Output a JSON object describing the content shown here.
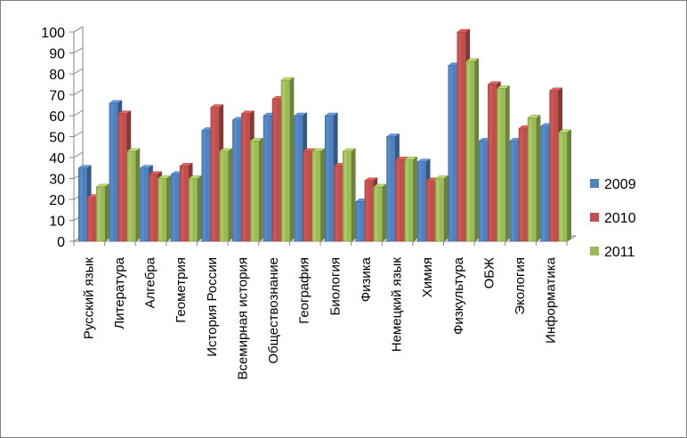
{
  "chart_data": {
    "type": "bar",
    "subtype": "3d-clustered-column",
    "categories": [
      "Русский язык",
      "Литература",
      "Алгебра",
      "Геометрия",
      "История России",
      "Всемирная история",
      "Обществознание",
      "География",
      "Биология",
      "Физика",
      "Немецкий язык",
      "Химия",
      "Физкультура",
      "ОБЖ",
      "Экология",
      "Информатика"
    ],
    "series": [
      {
        "name": "2009",
        "color": "#4f81bd",
        "values": [
          35,
          66,
          35,
          32,
          53,
          58,
          60,
          60,
          60,
          19,
          50,
          38,
          84,
          48,
          48,
          55
        ]
      },
      {
        "name": "2010",
        "color": "#c0504d",
        "values": [
          21,
          61,
          32,
          36,
          64,
          61,
          68,
          43,
          36,
          29,
          39,
          29,
          100,
          75,
          54,
          72
        ]
      },
      {
        "name": "2011",
        "color": "#9bbb59",
        "values": [
          26,
          43,
          30,
          30,
          43,
          48,
          77,
          43,
          43,
          26,
          39,
          30,
          86,
          73,
          59,
          52
        ]
      }
    ],
    "yticks": [
      0,
      10,
      20,
      30,
      40,
      50,
      60,
      70,
      80,
      90,
      100
    ],
    "ylim": [
      0,
      100
    ],
    "grid": false,
    "legend_position": "right"
  }
}
